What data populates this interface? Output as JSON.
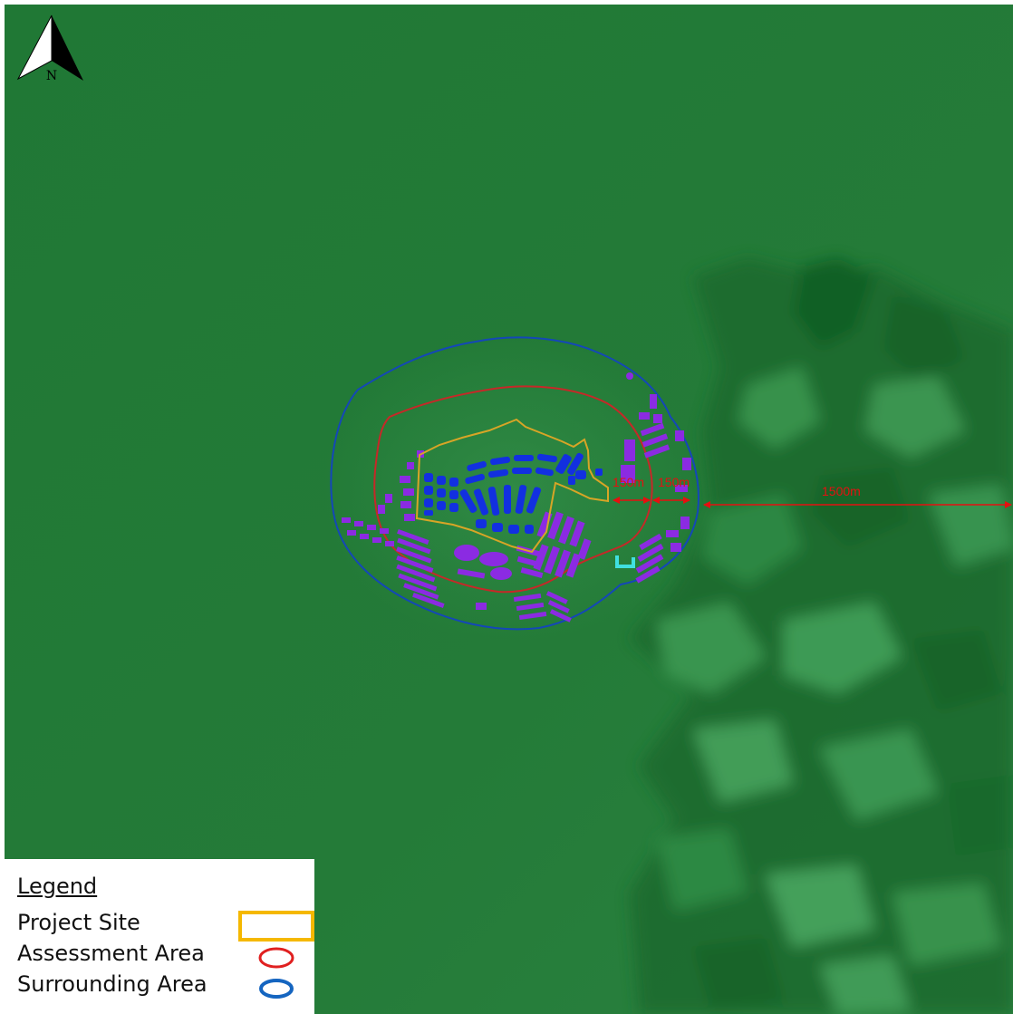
{
  "north_arrow": {
    "label": "N",
    "icon": "north-arrow-icon"
  },
  "distance_labels": [
    "150m",
    "150m",
    "1500m"
  ],
  "legend": {
    "title": "Legend",
    "items": [
      {
        "label": "Project Site",
        "color": "#f5b800",
        "icon": "rectangle-swatch"
      },
      {
        "label": "Assessment Area",
        "color": "#e02020",
        "icon": "ellipse-swatch"
      },
      {
        "label": "Surrounding Area",
        "color": "#1565c0",
        "icon": "ellipse-swatch"
      }
    ]
  },
  "colors": {
    "terrain": "#247a38",
    "terrain_dark": "#19662b",
    "terrain_light": "#3f9a55",
    "project_site": "#d8a526",
    "assessment_area": "#c62828",
    "surrounding_area": "#1447b8",
    "buildings_surrounding": "#8b2be2",
    "buildings_site": "#1230e0",
    "receptor": "#40e0e0",
    "dimension_line": "#e51010"
  }
}
